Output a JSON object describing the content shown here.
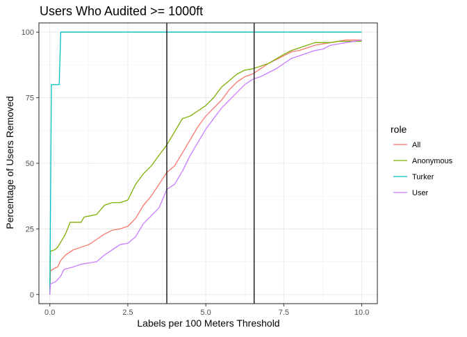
{
  "chart_data": {
    "type": "line",
    "title": "Users Who Audited >= 1000ft",
    "xlabel": "Labels per 100 Meters Threshold",
    "ylabel": "Percentage of Users Removed",
    "xlim": [
      -0.35,
      10.5
    ],
    "ylim": [
      -3.5,
      103.5
    ],
    "x_ticks": [
      0.0,
      2.5,
      5.0,
      7.5,
      10.0
    ],
    "x_tick_labels": [
      "0.0",
      "2.5",
      "5.0",
      "7.5",
      "10.0"
    ],
    "y_ticks": [
      0,
      25,
      50,
      75,
      100
    ],
    "y_tick_labels": [
      "0",
      "25",
      "50",
      "75",
      "100"
    ],
    "grid": true,
    "legend_title": "role",
    "legend_position": "right",
    "vlines": [
      3.75,
      6.55
    ],
    "series": [
      {
        "name": "All",
        "color": "#F8766D",
        "points": [
          [
            0.0,
            0.0
          ],
          [
            0.02,
            9.0
          ],
          [
            0.15,
            10.0
          ],
          [
            0.25,
            10.5
          ],
          [
            0.35,
            13.0
          ],
          [
            0.5,
            15.0
          ],
          [
            0.75,
            17.0
          ],
          [
            1.0,
            18.0
          ],
          [
            1.25,
            19.0
          ],
          [
            1.5,
            21.0
          ],
          [
            1.75,
            23.0
          ],
          [
            2.0,
            24.5
          ],
          [
            2.25,
            25.0
          ],
          [
            2.5,
            26.0
          ],
          [
            2.75,
            29.0
          ],
          [
            3.0,
            34.0
          ],
          [
            3.25,
            37.5
          ],
          [
            3.5,
            42.0
          ],
          [
            3.75,
            46.5
          ],
          [
            4.0,
            49.0
          ],
          [
            4.25,
            54.0
          ],
          [
            4.5,
            59.0
          ],
          [
            4.75,
            64.0
          ],
          [
            5.0,
            68.0
          ],
          [
            5.25,
            71.0
          ],
          [
            5.5,
            74.0
          ],
          [
            5.75,
            78.0
          ],
          [
            6.0,
            81.0
          ],
          [
            6.25,
            83.0
          ],
          [
            6.5,
            84.0
          ],
          [
            6.75,
            86.0
          ],
          [
            7.0,
            88.0
          ],
          [
            7.25,
            89.5
          ],
          [
            7.5,
            91.0
          ],
          [
            7.75,
            92.5
          ],
          [
            8.0,
            93.0
          ],
          [
            8.25,
            94.0
          ],
          [
            8.5,
            95.0
          ],
          [
            8.75,
            95.5
          ],
          [
            9.0,
            96.0
          ],
          [
            9.25,
            96.5
          ],
          [
            9.5,
            97.0
          ],
          [
            10.0,
            97.0
          ]
        ]
      },
      {
        "name": "Anonymous",
        "color": "#7CAE00",
        "points": [
          [
            0.0,
            0.0
          ],
          [
            0.02,
            16.5
          ],
          [
            0.15,
            17.0
          ],
          [
            0.25,
            18.0
          ],
          [
            0.35,
            20.0
          ],
          [
            0.5,
            23.0
          ],
          [
            0.65,
            27.5
          ],
          [
            1.0,
            27.5
          ],
          [
            1.1,
            29.5
          ],
          [
            1.5,
            30.5
          ],
          [
            1.75,
            34.0
          ],
          [
            2.0,
            35.0
          ],
          [
            2.25,
            35.0
          ],
          [
            2.5,
            36.0
          ],
          [
            2.75,
            42.0
          ],
          [
            3.0,
            46.0
          ],
          [
            3.25,
            49.0
          ],
          [
            3.5,
            53.0
          ],
          [
            3.75,
            57.0
          ],
          [
            4.0,
            62.0
          ],
          [
            4.25,
            67.0
          ],
          [
            4.5,
            68.0
          ],
          [
            4.75,
            70.0
          ],
          [
            5.0,
            72.0
          ],
          [
            5.25,
            75.0
          ],
          [
            5.5,
            79.0
          ],
          [
            5.75,
            81.5
          ],
          [
            6.0,
            84.0
          ],
          [
            6.25,
            85.5
          ],
          [
            6.5,
            86.0
          ],
          [
            7.0,
            88.0
          ],
          [
            7.5,
            91.5
          ],
          [
            7.75,
            93.0
          ],
          [
            8.0,
            94.0
          ],
          [
            8.25,
            95.0
          ],
          [
            8.5,
            96.0
          ],
          [
            9.0,
            96.0
          ],
          [
            9.25,
            96.5
          ],
          [
            10.0,
            96.5
          ]
        ]
      },
      {
        "name": "Turker",
        "color": "#00BFC4",
        "points": [
          [
            0.0,
            0.0
          ],
          [
            0.05,
            80.0
          ],
          [
            0.3,
            80.0
          ],
          [
            0.35,
            100.0
          ],
          [
            10.0,
            100.0
          ]
        ]
      },
      {
        "name": "User",
        "color": "#C77CFF",
        "points": [
          [
            0.0,
            0.0
          ],
          [
            0.02,
            4.0
          ],
          [
            0.2,
            5.0
          ],
          [
            0.35,
            7.0
          ],
          [
            0.45,
            9.5
          ],
          [
            0.75,
            10.5
          ],
          [
            1.0,
            11.5
          ],
          [
            1.5,
            12.5
          ],
          [
            1.75,
            15.0
          ],
          [
            2.0,
            17.0
          ],
          [
            2.25,
            19.0
          ],
          [
            2.5,
            19.5
          ],
          [
            2.75,
            22.0
          ],
          [
            3.0,
            27.0
          ],
          [
            3.25,
            30.0
          ],
          [
            3.5,
            33.0
          ],
          [
            3.75,
            40.0
          ],
          [
            4.0,
            42.0
          ],
          [
            4.25,
            47.0
          ],
          [
            4.5,
            53.0
          ],
          [
            4.75,
            58.0
          ],
          [
            5.0,
            63.0
          ],
          [
            5.25,
            67.0
          ],
          [
            5.5,
            71.0
          ],
          [
            5.75,
            74.0
          ],
          [
            6.0,
            77.0
          ],
          [
            6.25,
            80.0
          ],
          [
            6.5,
            82.0
          ],
          [
            6.75,
            83.0
          ],
          [
            7.0,
            84.5
          ],
          [
            7.25,
            86.0
          ],
          [
            7.5,
            88.0
          ],
          [
            7.75,
            90.0
          ],
          [
            8.0,
            91.0
          ],
          [
            8.25,
            92.0
          ],
          [
            8.5,
            93.0
          ],
          [
            8.75,
            93.5
          ],
          [
            9.0,
            95.0
          ],
          [
            9.25,
            95.5
          ],
          [
            9.5,
            96.0
          ],
          [
            10.0,
            97.0
          ]
        ]
      }
    ]
  }
}
